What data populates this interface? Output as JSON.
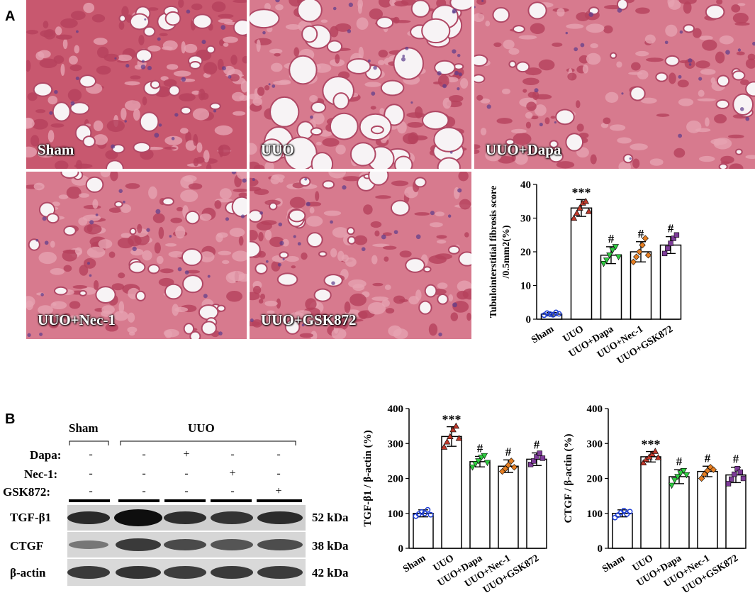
{
  "figure": {
    "panel_a": {
      "letter": "A",
      "images": [
        {
          "label": "Sham"
        },
        {
          "label": "UUO"
        },
        {
          "label": "UUO+Dapa"
        },
        {
          "label": "UUO+Nec-1"
        },
        {
          "label": "UUO+GSK872"
        }
      ]
    },
    "panel_b": {
      "letter": "B",
      "blot": {
        "group_labels": [
          "Sham",
          "UUO"
        ],
        "treatment_rows": [
          {
            "name": "Dapa:",
            "marks": [
              "-",
              "-",
              "+",
              "-",
              "-"
            ]
          },
          {
            "name": "Nec-1:",
            "marks": [
              "-",
              "-",
              "-",
              "+",
              "-"
            ]
          },
          {
            "name": "GSK872:",
            "marks": [
              "-",
              "-",
              "-",
              "-",
              "+"
            ]
          }
        ],
        "bands": [
          {
            "protein": "TGF-β1",
            "size": "52 kDa"
          },
          {
            "protein": "CTGF",
            "size": "38 kDa"
          },
          {
            "protein": "β-actin",
            "size": "42 kDa"
          }
        ]
      }
    }
  },
  "chart_data": [
    {
      "type": "bar",
      "title": "",
      "ylabel": "Tubulointerstitial fibrosis score /0.5mm2(%)",
      "categories": [
        "Sham",
        "UUO",
        "UUO+Dapa",
        "UUO+Nec-1",
        "UUO+GSK872"
      ],
      "values": [
        1.5,
        33,
        19,
        20,
        22
      ],
      "errors": [
        0.5,
        2.5,
        2.5,
        3,
        2.5
      ],
      "significance": [
        "",
        "***",
        "#",
        "#",
        "#"
      ],
      "ylim": [
        0,
        40
      ],
      "yticks": [
        0,
        10,
        20,
        30,
        40
      ],
      "point_colors": [
        "#1f3fd6",
        "#c0392b",
        "#2ecc40",
        "#e67e22",
        "#7d3c98"
      ],
      "points": [
        [
          1.2,
          1.8,
          1.5,
          1.3,
          2.0,
          1.6
        ],
        [
          30,
          31.5,
          33,
          34.5,
          35,
          32
        ],
        [
          16.5,
          17.5,
          19,
          20.5,
          21.5,
          18.5
        ],
        [
          17,
          18.5,
          20,
          22,
          24,
          19
        ],
        [
          19.5,
          21,
          22.5,
          24,
          25
        ]
      ]
    },
    {
      "type": "bar",
      "title": "",
      "ylabel": "TGF-β1 / β-actin (%)",
      "categories": [
        "Sham",
        "UUO",
        "UUO+Dapa",
        "UUO+Nec-1",
        "UUO+GSK872"
      ],
      "values": [
        100,
        320,
        248,
        235,
        255
      ],
      "errors": [
        10,
        28,
        15,
        18,
        18
      ],
      "significance": [
        "",
        "***",
        "#",
        "#",
        "#"
      ],
      "ylim": [
        0,
        400
      ],
      "yticks": [
        0,
        100,
        200,
        300,
        400
      ],
      "point_colors": [
        "#1f3fd6",
        "#c0392b",
        "#2ecc40",
        "#e67e22",
        "#7d3c98"
      ],
      "points": [
        [
          92,
          98,
          104,
          100,
          110,
          96
        ],
        [
          290,
          305,
          320,
          340,
          350,
          315
        ],
        [
          232,
          242,
          250,
          260,
          265,
          245
        ],
        [
          220,
          228,
          238,
          250,
          232
        ],
        [
          240,
          250,
          262,
          272,
          258
        ]
      ]
    },
    {
      "type": "bar",
      "title": "",
      "ylabel": "CTGF / β-actin (%)",
      "categories": [
        "Sham",
        "UUO",
        "UUO+Dapa",
        "UUO+Nec-1",
        "UUO+GSK872"
      ],
      "values": [
        100,
        262,
        205,
        220,
        210
      ],
      "errors": [
        10,
        15,
        20,
        15,
        22
      ],
      "significance": [
        "",
        "***",
        "#",
        "#",
        "#"
      ],
      "ylim": [
        0,
        400
      ],
      "yticks": [
        0,
        100,
        200,
        300,
        400
      ],
      "point_colors": [
        "#1f3fd6",
        "#c0392b",
        "#2ecc40",
        "#e67e22",
        "#7d3c98"
      ],
      "points": [
        [
          88,
          95,
          102,
          108,
          98,
          105
        ],
        [
          245,
          255,
          262,
          270,
          278,
          260
        ],
        [
          180,
          195,
          205,
          215,
          222,
          210
        ],
        [
          200,
          212,
          222,
          232,
          225
        ],
        [
          185,
          198,
          212,
          228,
          218,
          200
        ]
      ]
    }
  ]
}
